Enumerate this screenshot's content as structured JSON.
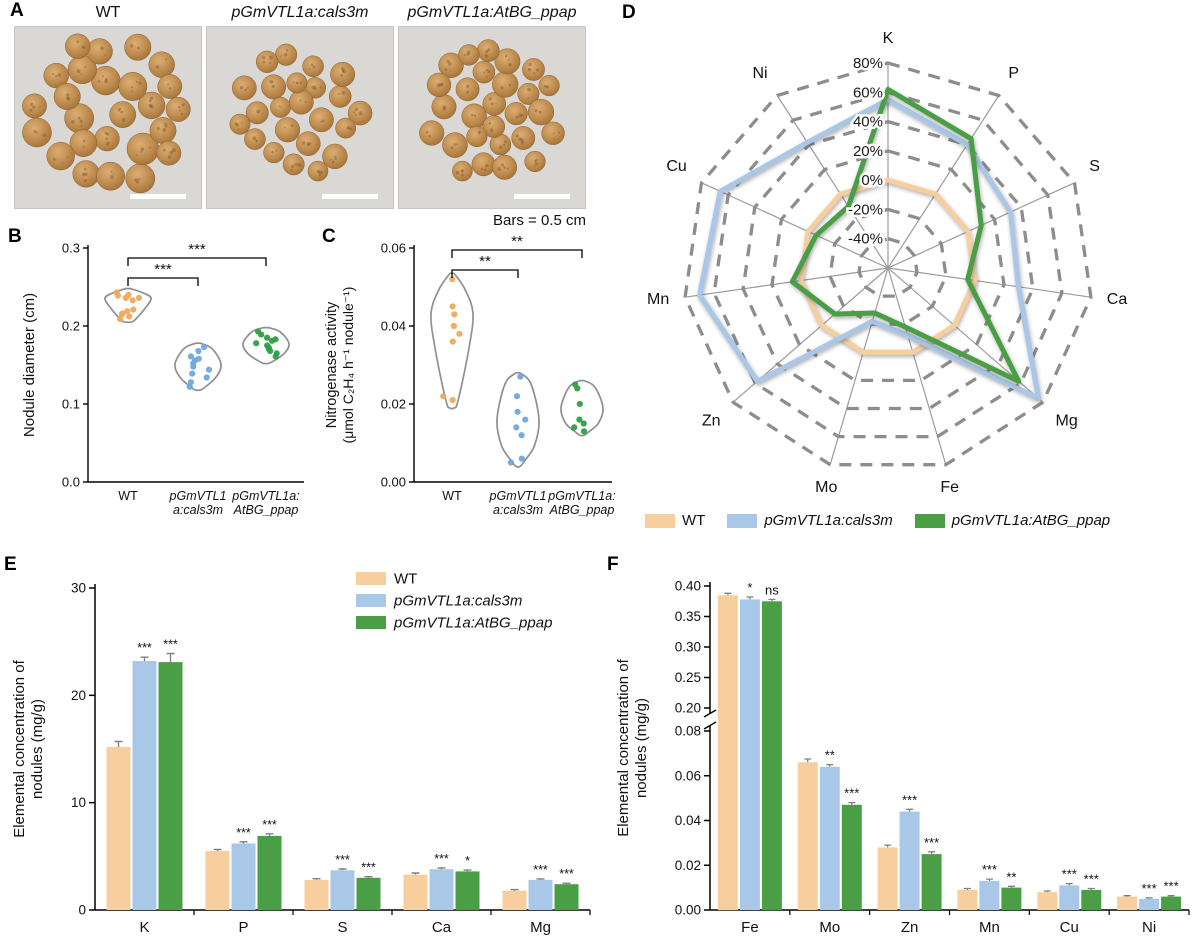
{
  "figure": {
    "panels": {
      "A": {
        "label": "A",
        "images": [
          {
            "title": "WT",
            "italic": false,
            "count": 32,
            "radius": [
              12,
              16
            ]
          },
          {
            "title": "pGmVTL1a:cals3m",
            "italic": true,
            "count": 26,
            "radius": [
              10,
              13
            ]
          },
          {
            "title": "pGmVTL1a:AtBG_ppap",
            "italic": true,
            "count": 27,
            "radius": [
              10,
              13
            ]
          }
        ],
        "scale_note": "Bars = 0.5 cm"
      },
      "B": {
        "label": "B"
      },
      "C": {
        "label": "C"
      },
      "D": {
        "label": "D"
      },
      "E": {
        "label": "E"
      },
      "F": {
        "label": "F"
      }
    }
  },
  "colors": {
    "wt": "#F7CF9F",
    "cals3m": "#A9C7E6",
    "atbg": "#4A9E45",
    "wt_dot": "#F0A95B",
    "cals3m_dot": "#6FA8DC",
    "atbg_dot": "#2F9E44",
    "violin_outline": "#8f8f8f",
    "ring": "#8d8d8d",
    "error": "#808080"
  },
  "legend": {
    "items": [
      {
        "label": "WT",
        "color": "wt",
        "italic": false
      },
      {
        "label": "pGmVTL1a:cals3m",
        "color": "cals3m",
        "italic": true
      },
      {
        "label": "pGmVTL1a:AtBG_ppap",
        "color": "atbg",
        "italic": true
      }
    ]
  },
  "chart_data": [
    {
      "panel": "B",
      "type": "violin",
      "ylabel": "Nodule diameter (cm)",
      "ylim": [
        0,
        0.3
      ],
      "yticks": [
        0,
        0.1,
        0.2,
        0.3
      ],
      "ytick_labels": [
        "0.0",
        "0.1",
        "0.2",
        "0.3"
      ],
      "groups": [
        {
          "name": "WT",
          "label_lines": [
            "WT"
          ],
          "color_key": "wt",
          "dot_color_key": "wt_dot",
          "points": [
            0.243,
            0.239,
            0.236,
            0.233,
            0.24,
            0.236,
            0.219,
            0.215,
            0.212,
            0.221,
            0.216,
            0.209
          ],
          "range": [
            0.205,
            0.248
          ],
          "bulge": 0.28
        },
        {
          "name": "pGmVTL1a:cals3m",
          "label_lines": [
            "pGmVTL1",
            "a:cals3m"
          ],
          "color_key": "cals3m",
          "dot_color_key": "cals3m_dot",
          "points": [
            0.173,
            0.168,
            0.161,
            0.156,
            0.152,
            0.158,
            0.148,
            0.144,
            0.139,
            0.134,
            0.128,
            0.122
          ],
          "range": [
            0.118,
            0.178
          ],
          "bulge": 0.45
        },
        {
          "name": "pGmVTL1a:AtBG_ppap",
          "label_lines": [
            "pGmVTL1a:",
            "AtBG_ppap"
          ],
          "color_key": "atbg",
          "dot_color_key": "atbg_dot",
          "points": [
            0.193,
            0.189,
            0.185,
            0.181,
            0.178,
            0.183,
            0.175,
            0.172,
            0.168,
            0.165,
            0.171,
            0.161
          ],
          "range": [
            0.152,
            0.198
          ],
          "bulge": 0.45
        }
      ],
      "significance": [
        {
          "a": 0,
          "b": 1,
          "label": "***"
        },
        {
          "a": 0,
          "b": 2,
          "label": "***"
        }
      ]
    },
    {
      "panel": "C",
      "type": "violin",
      "ylabel_lines": [
        "Nitrogenase activity",
        "(μmol C₂H₄ h⁻¹ nodule⁻¹)"
      ],
      "ylim": [
        0,
        0.06
      ],
      "yticks": [
        0,
        0.02,
        0.04,
        0.06
      ],
      "ytick_labels": [
        "0.00",
        "0.02",
        "0.04",
        "0.06"
      ],
      "groups": [
        {
          "name": "WT",
          "label_lines": [
            "WT"
          ],
          "color_key": "wt",
          "dot_color_key": "wt_dot",
          "points": [
            0.052,
            0.045,
            0.043,
            0.04,
            0.038,
            0.036,
            0.022,
            0.021
          ],
          "range": [
            0.019,
            0.0535
          ],
          "bulge": 0.3
        },
        {
          "name": "pGmVTL1a:cals3m",
          "label_lines": [
            "pGmVTL1",
            "a:cals3m"
          ],
          "color_key": "cals3m",
          "dot_color_key": "cals3m_dot",
          "points": [
            0.027,
            0.022,
            0.018,
            0.016,
            0.014,
            0.012,
            0.006,
            0.005
          ],
          "range": [
            0.004,
            0.028
          ],
          "bulge": 0.5
        },
        {
          "name": "pGmVTL1a:AtBG_ppap",
          "label_lines": [
            "pGmVTL1a:",
            "AtBG_ppap"
          ],
          "color_key": "atbg",
          "dot_color_key": "atbg_dot",
          "points": [
            0.025,
            0.024,
            0.02,
            0.016,
            0.015,
            0.014,
            0.013
          ],
          "range": [
            0.012,
            0.026
          ],
          "bulge": 0.5
        }
      ],
      "significance": [
        {
          "a": 0,
          "b": 1,
          "label": "**"
        },
        {
          "a": 0,
          "b": 2,
          "label": "**"
        }
      ]
    },
    {
      "panel": "D",
      "type": "radar",
      "axes": [
        "K",
        "P",
        "S",
        "Ca",
        "Mg",
        "Fe",
        "Mo",
        "Zn",
        "Mn",
        "Cu",
        "Ni"
      ],
      "ring_values": [
        80,
        60,
        40,
        20,
        0,
        -20,
        -40
      ],
      "ring_labels": [
        "80%",
        "60%",
        "40%",
        "20%",
        "0%",
        "-20%",
        "-40%"
      ],
      "center_value": -60,
      "series": [
        {
          "name": "WT",
          "color_key": "wt",
          "values": [
            0,
            0,
            0,
            0,
            0,
            0,
            0,
            0,
            0,
            0,
            0
          ]
        },
        {
          "name": "pGmVTL1a:cals3m",
          "color_key": "cals3m",
          "values": [
            55,
            40,
            32,
            30,
            76,
            -12,
            -22,
            58,
            70,
            66,
            42
          ]
        },
        {
          "name": "pGmVTL1a:AtBG_ppap",
          "color_key": "atbg",
          "values": [
            62,
            45,
            10,
            -5,
            58,
            -18,
            -28,
            -12,
            6,
            -6,
            -10
          ]
        }
      ]
    },
    {
      "panel": "E",
      "type": "bar",
      "ylabel_lines": [
        "Elemental concentration of",
        "nodules (mg/g)"
      ],
      "categories": [
        "K",
        "P",
        "S",
        "Ca",
        "Mg"
      ],
      "ylim": [
        0,
        30
      ],
      "yticks": [
        0,
        10,
        20,
        30
      ],
      "series": [
        {
          "name": "WT",
          "color_key": "wt",
          "values": [
            15.2,
            5.5,
            2.8,
            3.3,
            1.8
          ],
          "errors": [
            0.5,
            0.15,
            0.12,
            0.15,
            0.1
          ]
        },
        {
          "name": "pGmVTL1a:cals3m",
          "color_key": "cals3m",
          "values": [
            23.2,
            6.2,
            3.7,
            3.8,
            2.8
          ],
          "errors": [
            0.35,
            0.15,
            0.12,
            0.12,
            0.1
          ],
          "sig": [
            "***",
            "***",
            "***",
            "***",
            "***"
          ]
        },
        {
          "name": "pGmVTL1a:AtBG_ppap",
          "color_key": "atbg",
          "values": [
            23.1,
            6.9,
            3.0,
            3.6,
            2.4
          ],
          "errors": [
            0.8,
            0.2,
            0.1,
            0.12,
            0.1
          ],
          "sig": [
            "***",
            "***",
            "***",
            "*",
            "***"
          ]
        }
      ]
    },
    {
      "panel": "F",
      "type": "bar-broken",
      "ylabel_lines": [
        "Elemental concentration of",
        "nodules (mg/g)"
      ],
      "categories": [
        "Fe",
        "Mo",
        "Zn",
        "Mn",
        "Cu",
        "Ni"
      ],
      "axis_break": [
        0.08,
        0.2
      ],
      "lower_ticks": [
        0,
        0.02,
        0.04,
        0.06,
        0.08
      ],
      "upper_ticks": [
        0.2,
        0.25,
        0.3,
        0.35,
        0.4
      ],
      "ymax": 0.4,
      "series": [
        {
          "name": "WT",
          "color_key": "wt",
          "values": [
            0.385,
            0.066,
            0.028,
            0.009,
            0.008,
            0.006
          ],
          "errors": [
            0.003,
            0.0015,
            0.001,
            0.0006,
            0.0005,
            0.0004
          ]
        },
        {
          "name": "pGmVTL1a:cals3m",
          "color_key": "cals3m",
          "values": [
            0.378,
            0.064,
            0.044,
            0.013,
            0.011,
            0.005
          ],
          "errors": [
            0.004,
            0.001,
            0.001,
            0.0008,
            0.0008,
            0.0004
          ],
          "sig": [
            "*",
            "**",
            "***",
            "***",
            "***",
            "***"
          ]
        },
        {
          "name": "pGmVTL1a:AtBG_ppap",
          "color_key": "atbg",
          "values": [
            0.375,
            0.047,
            0.025,
            0.01,
            0.009,
            0.006
          ],
          "errors": [
            0.003,
            0.001,
            0.001,
            0.0006,
            0.0006,
            0.0004
          ],
          "sig": [
            "ns",
            "***",
            "***",
            "**",
            "***",
            "***"
          ]
        }
      ]
    }
  ]
}
